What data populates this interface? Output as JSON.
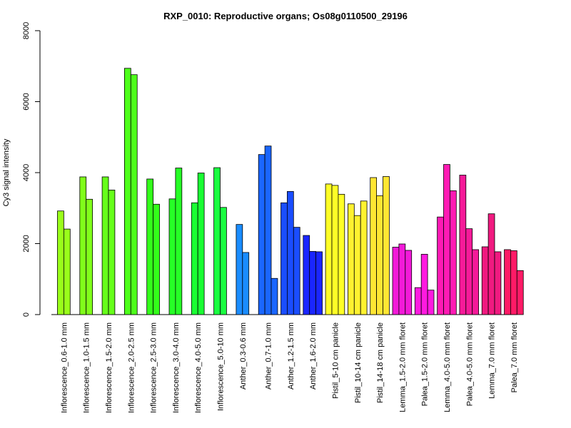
{
  "chart_data": {
    "type": "bar",
    "title": "RXP_0010: Reproductive organs; Os08g0110500_29196",
    "xlabel": "",
    "ylabel": "Cy3 signal intensity",
    "ylim": [
      0,
      8000
    ],
    "yticks": [
      0,
      2000,
      4000,
      6000,
      8000
    ],
    "grid": false,
    "legend": "none",
    "groups": [
      {
        "label": "Inflorescence_0.6-1.0 mm",
        "values": [
          2920,
          2410
        ],
        "color": "#99ff1a"
      },
      {
        "label": "Inflorescence_1.0-1.5 mm",
        "values": [
          3880,
          3250
        ],
        "color": "#80ff1a"
      },
      {
        "label": "Inflorescence_1.5-2.0 mm",
        "values": [
          3880,
          3510
        ],
        "color": "#66ff1a"
      },
      {
        "label": "Inflorescence_2.0-2.5 mm",
        "values": [
          6940,
          6760
        ],
        "color": "#4dff1a"
      },
      {
        "label": "Inflorescence_2.5-3.0 mm",
        "values": [
          3820,
          3110
        ],
        "color": "#33ff1a"
      },
      {
        "label": "Inflorescence_3.0-4.0 mm",
        "values": [
          3260,
          4130
        ],
        "color": "#26ff26"
      },
      {
        "label": "Inflorescence_4.0-5.0 mm",
        "values": [
          3150,
          3990
        ],
        "color": "#1aff33"
      },
      {
        "label": "Inflorescence_5.0-10 mm",
        "values": [
          4140,
          3020
        ],
        "color": "#1aff40"
      },
      {
        "label": "Anther_0.3-0.6 mm",
        "values": [
          2540,
          1750
        ],
        "color": "#1a8cff"
      },
      {
        "label": "Anther_0.7-1.0 mm",
        "values": [
          4510,
          4750,
          1020
        ],
        "color": "#1a66ff"
      },
      {
        "label": "Anther_1.2-1.5 mm",
        "values": [
          3150,
          3470,
          2460
        ],
        "color": "#1a4dff"
      },
      {
        "label": "Anther_1.6-2.0 mm",
        "values": [
          2230,
          1780,
          1770
        ],
        "color": "#1a26ff"
      },
      {
        "label": "Pistil_5-10 cm panicle",
        "values": [
          3680,
          3640,
          3390
        ],
        "color": "#ffff26"
      },
      {
        "label": "Pistil_10-14 cm panicle",
        "values": [
          3120,
          2790,
          3200
        ],
        "color": "#fff230"
      },
      {
        "label": "Pistil_14-18 cm panicle",
        "values": [
          3860,
          3350,
          3890
        ],
        "color": "#ffe633"
      },
      {
        "label": "Lemma_1.5-2.0 mm floret",
        "values": [
          1900,
          1990,
          1810
        ],
        "color": "#f21ad9"
      },
      {
        "label": "Palea_1.5-2.0 mm floret",
        "values": [
          760,
          1700,
          690
        ],
        "color": "#ff1ae0"
      },
      {
        "label": "Lemma_4.0-5.0 mm floret",
        "values": [
          2750,
          4230,
          3490
        ],
        "color": "#ff1ab3"
      },
      {
        "label": "Palea_4.0-5.0 mm floret",
        "values": [
          3930,
          2420,
          1830
        ],
        "color": "#f51a99"
      },
      {
        "label": "Lemma_7.0 mm floret",
        "values": [
          1910,
          2840,
          1770
        ],
        "color": "#f01a80"
      },
      {
        "label": "Palea_7.0 mm floret",
        "values": [
          1830,
          1800,
          1240
        ],
        "color": "#ff1a66"
      }
    ]
  }
}
